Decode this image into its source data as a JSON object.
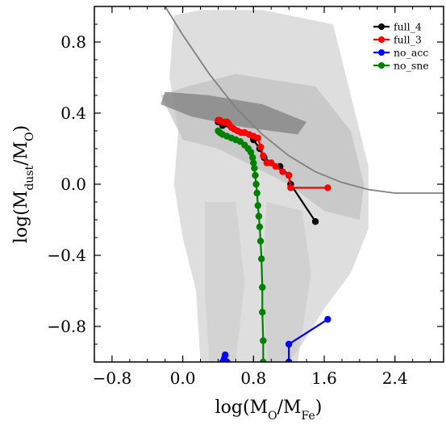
{
  "chart_data": {
    "type": "scatter",
    "xlabel": "log(M_O/M_Fe)",
    "ylabel": "log(M_dust/M_O)",
    "xlim": [
      -1.0,
      2.95
    ],
    "ylim": [
      -1.0,
      1.0
    ],
    "xticks": [
      -0.8,
      0.0,
      0.8,
      1.6,
      2.4
    ],
    "xtick_labels": [
      "−0.8",
      "0.0",
      "0.8",
      "1.6",
      "2.4"
    ],
    "yticks": [
      0.8,
      0.4,
      0.0,
      -0.4,
      -0.8
    ],
    "ytick_labels": [
      "0.8",
      "0.4",
      "0.0",
      "−0.4",
      "−0.8"
    ],
    "legend_position": "top-right",
    "grid": false,
    "background": "grey density of observed galaxies",
    "curve": {
      "color": "#808080",
      "points": [
        [
          -0.2,
          1.0
        ],
        [
          0.0,
          0.84
        ],
        [
          0.3,
          0.62
        ],
        [
          0.6,
          0.43
        ],
        [
          0.9,
          0.28
        ],
        [
          1.2,
          0.16
        ],
        [
          1.5,
          0.07
        ],
        [
          1.8,
          0.01
        ],
        [
          2.1,
          -0.03
        ],
        [
          2.4,
          -0.05
        ],
        [
          2.7,
          -0.05
        ],
        [
          2.95,
          -0.05
        ]
      ]
    },
    "series": [
      {
        "name": "full_4",
        "color": "#000000",
        "points": [
          [
            0.4,
            0.35
          ],
          [
            0.45,
            0.33
          ],
          [
            0.55,
            0.32
          ],
          [
            0.7,
            0.29
          ],
          [
            0.8,
            0.25
          ],
          [
            0.87,
            0.2
          ],
          [
            0.92,
            0.15
          ],
          [
            1.0,
            0.12
          ],
          [
            1.1,
            0.1
          ],
          [
            1.2,
            0.05
          ],
          [
            1.22,
            0.0
          ],
          [
            1.5,
            -0.21
          ]
        ]
      },
      {
        "name": "full_3",
        "color": "#ff0000",
        "points": [
          [
            0.4,
            0.36
          ],
          [
            0.42,
            0.36
          ],
          [
            0.45,
            0.35
          ],
          [
            0.48,
            0.35
          ],
          [
            0.5,
            0.35
          ],
          [
            0.52,
            0.34
          ],
          [
            0.55,
            0.32
          ],
          [
            0.58,
            0.31
          ],
          [
            0.62,
            0.3
          ],
          [
            0.66,
            0.29
          ],
          [
            0.7,
            0.29
          ],
          [
            0.75,
            0.28
          ],
          [
            0.8,
            0.27
          ],
          [
            0.85,
            0.26
          ],
          [
            0.88,
            0.21
          ],
          [
            0.91,
            0.16
          ],
          [
            0.95,
            0.12
          ],
          [
            1.0,
            0.12
          ],
          [
            1.05,
            0.1
          ],
          [
            1.13,
            0.07
          ],
          [
            1.2,
            0.05
          ],
          [
            1.22,
            -0.02
          ],
          [
            1.64,
            -0.02
          ]
        ]
      },
      {
        "name": "no_acc",
        "color": "#0000ff",
        "points": [
          [
            0.45,
            -1.0
          ],
          [
            0.47,
            -0.98
          ],
          [
            0.48,
            -0.96
          ],
          [
            0.5,
            -1.0
          ]
        ],
        "points2": [
          [
            1.2,
            -1.0
          ],
          [
            1.2,
            -0.9
          ],
          [
            1.64,
            -0.76
          ]
        ]
      },
      {
        "name": "no_sne",
        "color": "#008000",
        "points": [
          [
            0.4,
            0.3
          ],
          [
            0.42,
            0.29
          ],
          [
            0.45,
            0.28
          ],
          [
            0.5,
            0.27
          ],
          [
            0.55,
            0.26
          ],
          [
            0.6,
            0.25
          ],
          [
            0.65,
            0.24
          ],
          [
            0.7,
            0.22
          ],
          [
            0.74,
            0.2
          ],
          [
            0.77,
            0.18
          ],
          [
            0.79,
            0.15
          ],
          [
            0.8,
            0.12
          ],
          [
            0.81,
            0.09
          ],
          [
            0.82,
            0.05
          ],
          [
            0.83,
            0.0
          ],
          [
            0.84,
            -0.05
          ],
          [
            0.85,
            -0.12
          ],
          [
            0.86,
            -0.18
          ],
          [
            0.87,
            -0.24
          ],
          [
            0.88,
            -0.32
          ],
          [
            0.89,
            -0.42
          ],
          [
            0.9,
            -0.58
          ],
          [
            0.9,
            -0.72
          ],
          [
            0.91,
            -0.88
          ],
          [
            0.91,
            -1.0
          ]
        ]
      }
    ]
  }
}
